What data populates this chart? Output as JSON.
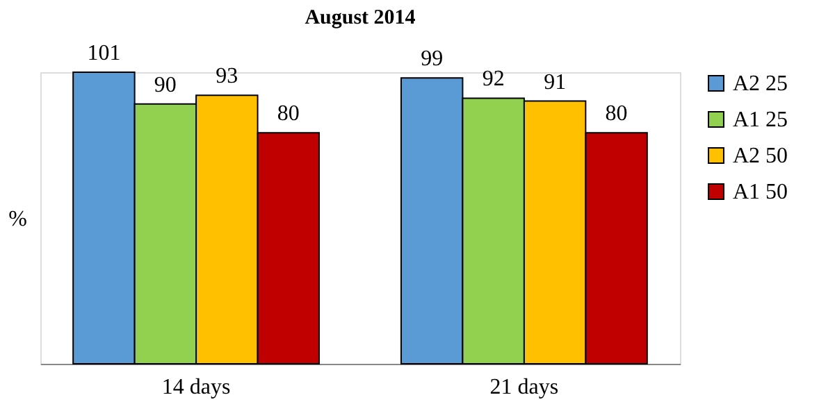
{
  "chart_data": {
    "type": "bar",
    "title": "August 2014",
    "ylabel": "%",
    "categories": [
      "14 days",
      "21 days"
    ],
    "series": [
      {
        "name": "A2 25",
        "color": "#5b9bd5",
        "values": [
          101,
          99
        ]
      },
      {
        "name": "A1 25",
        "color": "#92d050",
        "values": [
          90,
          92
        ]
      },
      {
        "name": "A2 50",
        "color": "#ffc000",
        "values": [
          93,
          91
        ]
      },
      {
        "name": "A1 50",
        "color": "#c00000",
        "values": [
          80,
          80
        ]
      }
    ],
    "data_labels": true,
    "legend": "right",
    "grid": false
  }
}
